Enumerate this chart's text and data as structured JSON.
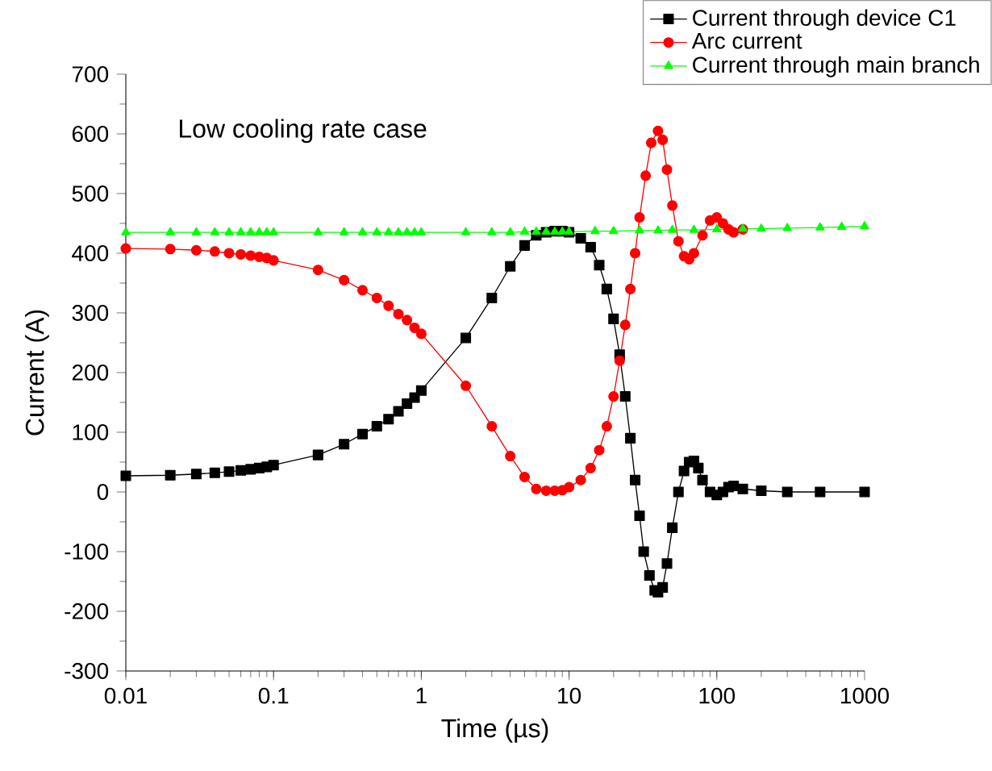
{
  "chart_data": {
    "type": "line",
    "xlabel": "Time (µs)",
    "ylabel": "Current (A)",
    "log": "x",
    "xlim": [
      0.01,
      1000
    ],
    "xticks": [
      0.01,
      0.1,
      1,
      10,
      100,
      1000
    ],
    "ylim": [
      -300,
      700
    ],
    "yticks": [
      -300,
      -200,
      -100,
      0,
      100,
      200,
      300,
      400,
      500,
      600,
      700
    ],
    "grid": false,
    "legend": "top right",
    "line_style": "solid",
    "annotations": [
      "Low cooling rate case"
    ],
    "series": [
      {
        "name": "Current through device C1",
        "color": "#000000",
        "marker": "square",
        "x": [
          0.01,
          0.02,
          0.03,
          0.04,
          0.05,
          0.06,
          0.07,
          0.08,
          0.09,
          0.1,
          0.2,
          0.3,
          0.4,
          0.5,
          0.6,
          0.7,
          0.8,
          0.9,
          1,
          2,
          3,
          4,
          5,
          6,
          7,
          8,
          9,
          10,
          12,
          14,
          16,
          18,
          20,
          22,
          24,
          26,
          28,
          30,
          32,
          35,
          38,
          40,
          43,
          46,
          50,
          55,
          60,
          65,
          70,
          75,
          80,
          90,
          100,
          110,
          120,
          130,
          150,
          200,
          300,
          500,
          1000
        ],
        "values": [
          27,
          28,
          30,
          32,
          34,
          36,
          38,
          40,
          42,
          45,
          62,
          80,
          97,
          110,
          122,
          135,
          148,
          158,
          170,
          258,
          325,
          378,
          413,
          430,
          435,
          437,
          437,
          435,
          425,
          410,
          380,
          340,
          290,
          230,
          160,
          90,
          20,
          -40,
          -100,
          -140,
          -165,
          -168,
          -160,
          -120,
          -60,
          0,
          35,
          50,
          52,
          40,
          20,
          0,
          -5,
          0,
          8,
          10,
          5,
          2,
          0,
          0,
          0
        ]
      },
      {
        "name": "Arc current",
        "color": "#ff0000",
        "marker": "circle",
        "x": [
          0.01,
          0.02,
          0.03,
          0.04,
          0.05,
          0.06,
          0.07,
          0.08,
          0.09,
          0.1,
          0.2,
          0.3,
          0.4,
          0.5,
          0.6,
          0.7,
          0.8,
          0.9,
          1,
          2,
          3,
          4,
          5,
          6,
          7,
          8,
          9,
          10,
          12,
          14,
          16,
          18,
          20,
          22,
          24,
          26,
          28,
          30,
          33,
          36,
          40,
          43,
          46,
          50,
          55,
          60,
          65,
          70,
          80,
          90,
          100,
          110,
          120,
          130,
          150
        ],
        "values": [
          408,
          407,
          405,
          403,
          400,
          398,
          396,
          394,
          392,
          388,
          372,
          355,
          338,
          325,
          312,
          298,
          288,
          275,
          265,
          178,
          110,
          60,
          25,
          5,
          2,
          2,
          3,
          8,
          20,
          40,
          70,
          110,
          160,
          220,
          280,
          340,
          400,
          460,
          530,
          585,
          605,
          590,
          540,
          480,
          420,
          395,
          390,
          400,
          430,
          455,
          460,
          450,
          440,
          435,
          440
        ]
      },
      {
        "name": "Current through main branch",
        "color": "#00ff00",
        "marker": "triangle",
        "x": [
          0.01,
          0.02,
          0.03,
          0.04,
          0.05,
          0.06,
          0.07,
          0.08,
          0.09,
          0.1,
          0.2,
          0.3,
          0.4,
          0.5,
          0.6,
          0.7,
          0.8,
          0.9,
          1,
          2,
          3,
          4,
          5,
          6,
          7,
          8,
          9,
          10,
          15,
          20,
          30,
          40,
          50,
          70,
          100,
          150,
          200,
          300,
          500,
          700,
          1000
        ],
        "values": [
          435,
          435,
          435,
          435,
          435,
          435,
          435,
          435,
          435,
          435,
          435,
          435,
          435,
          435,
          435,
          435,
          435,
          435,
          435,
          435,
          435,
          435,
          436,
          436,
          436,
          436,
          436,
          436,
          437,
          437,
          438,
          438,
          439,
          439,
          440,
          441,
          441,
          442,
          443,
          444,
          445
        ]
      }
    ]
  }
}
